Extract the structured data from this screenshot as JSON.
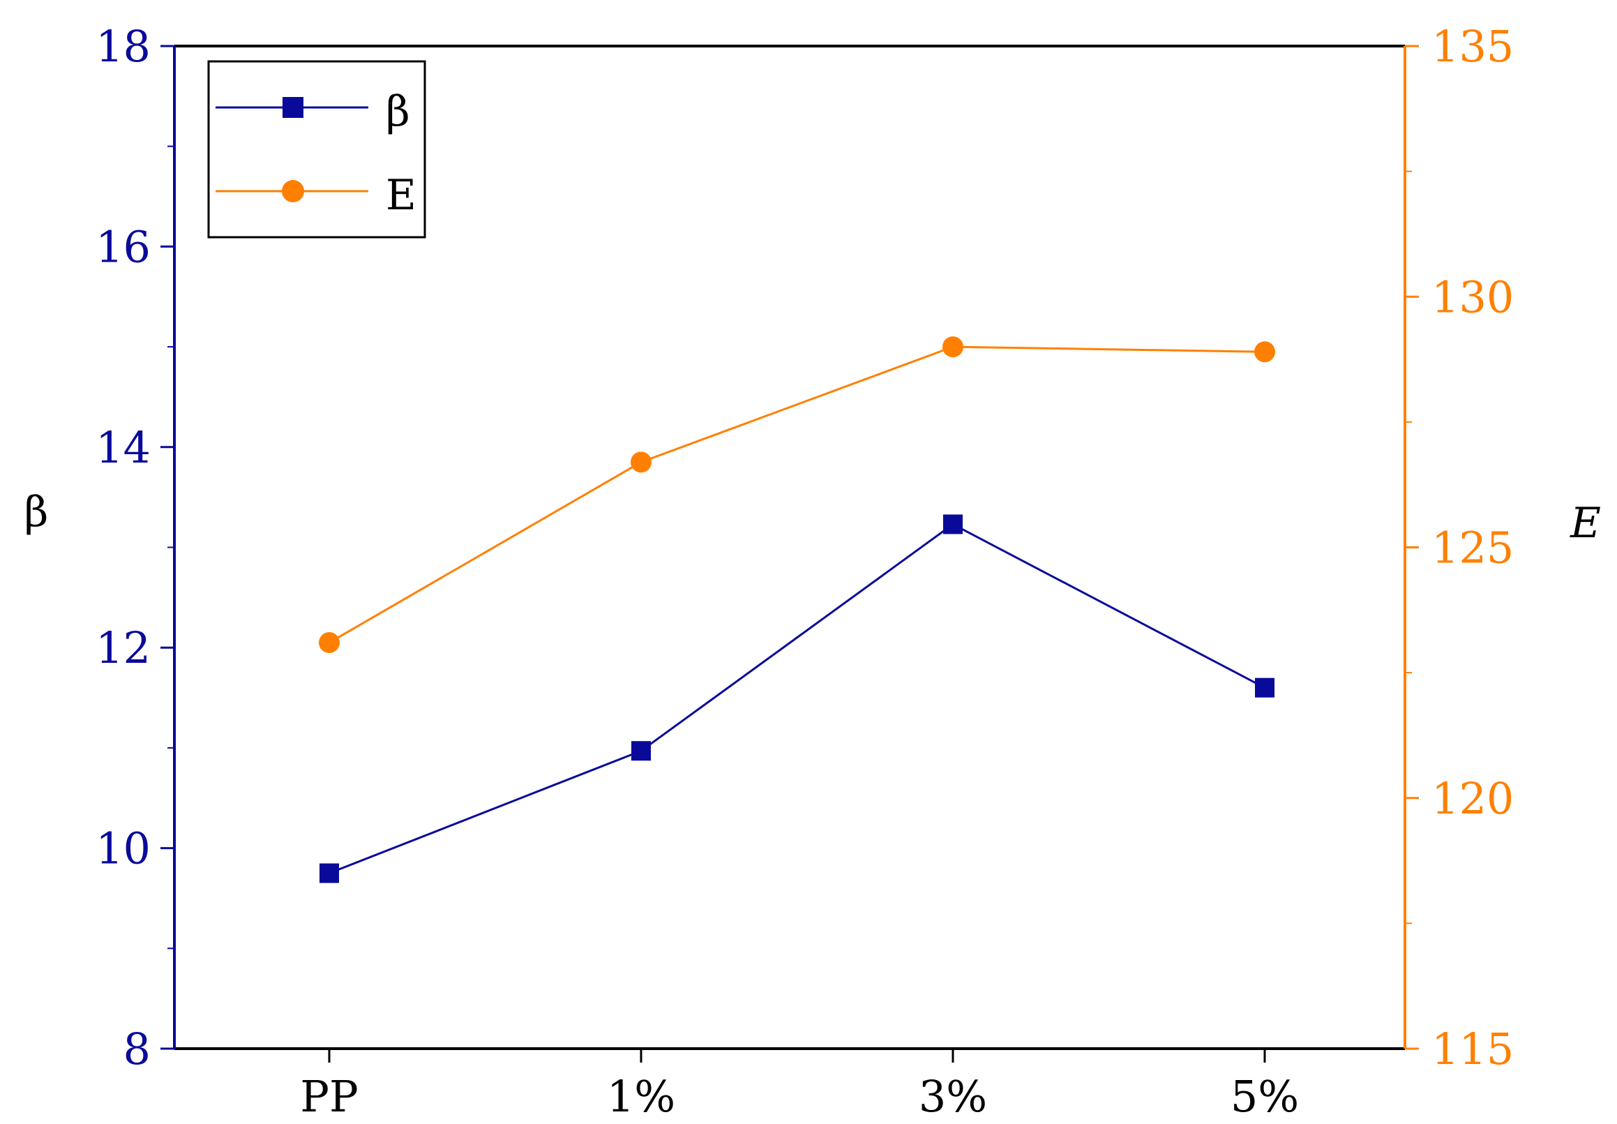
{
  "chart_data": {
    "type": "line",
    "categories": [
      "PP",
      "1%",
      "3%",
      "5%"
    ],
    "series": [
      {
        "name": "β",
        "axis": "left",
        "marker": "square",
        "color": "#0a0a9a",
        "values": [
          9.75,
          10.97,
          13.23,
          11.6
        ]
      },
      {
        "name": "E",
        "axis": "right",
        "marker": "circle",
        "color": "#ff8000",
        "values": [
          123.1,
          126.7,
          129.0,
          128.9
        ]
      }
    ],
    "y_left": {
      "label": "β",
      "min": 8,
      "max": 18,
      "ticks": [
        8,
        10,
        12,
        14,
        16,
        18
      ],
      "color": "#0a0a9a"
    },
    "y_right": {
      "label": "E",
      "min": 115,
      "max": 135,
      "ticks": [
        115,
        120,
        125,
        130,
        135
      ],
      "color": "#ff8000"
    },
    "legend": {
      "placement": "top-left",
      "entries": [
        "β",
        "E"
      ]
    },
    "grid": false
  }
}
